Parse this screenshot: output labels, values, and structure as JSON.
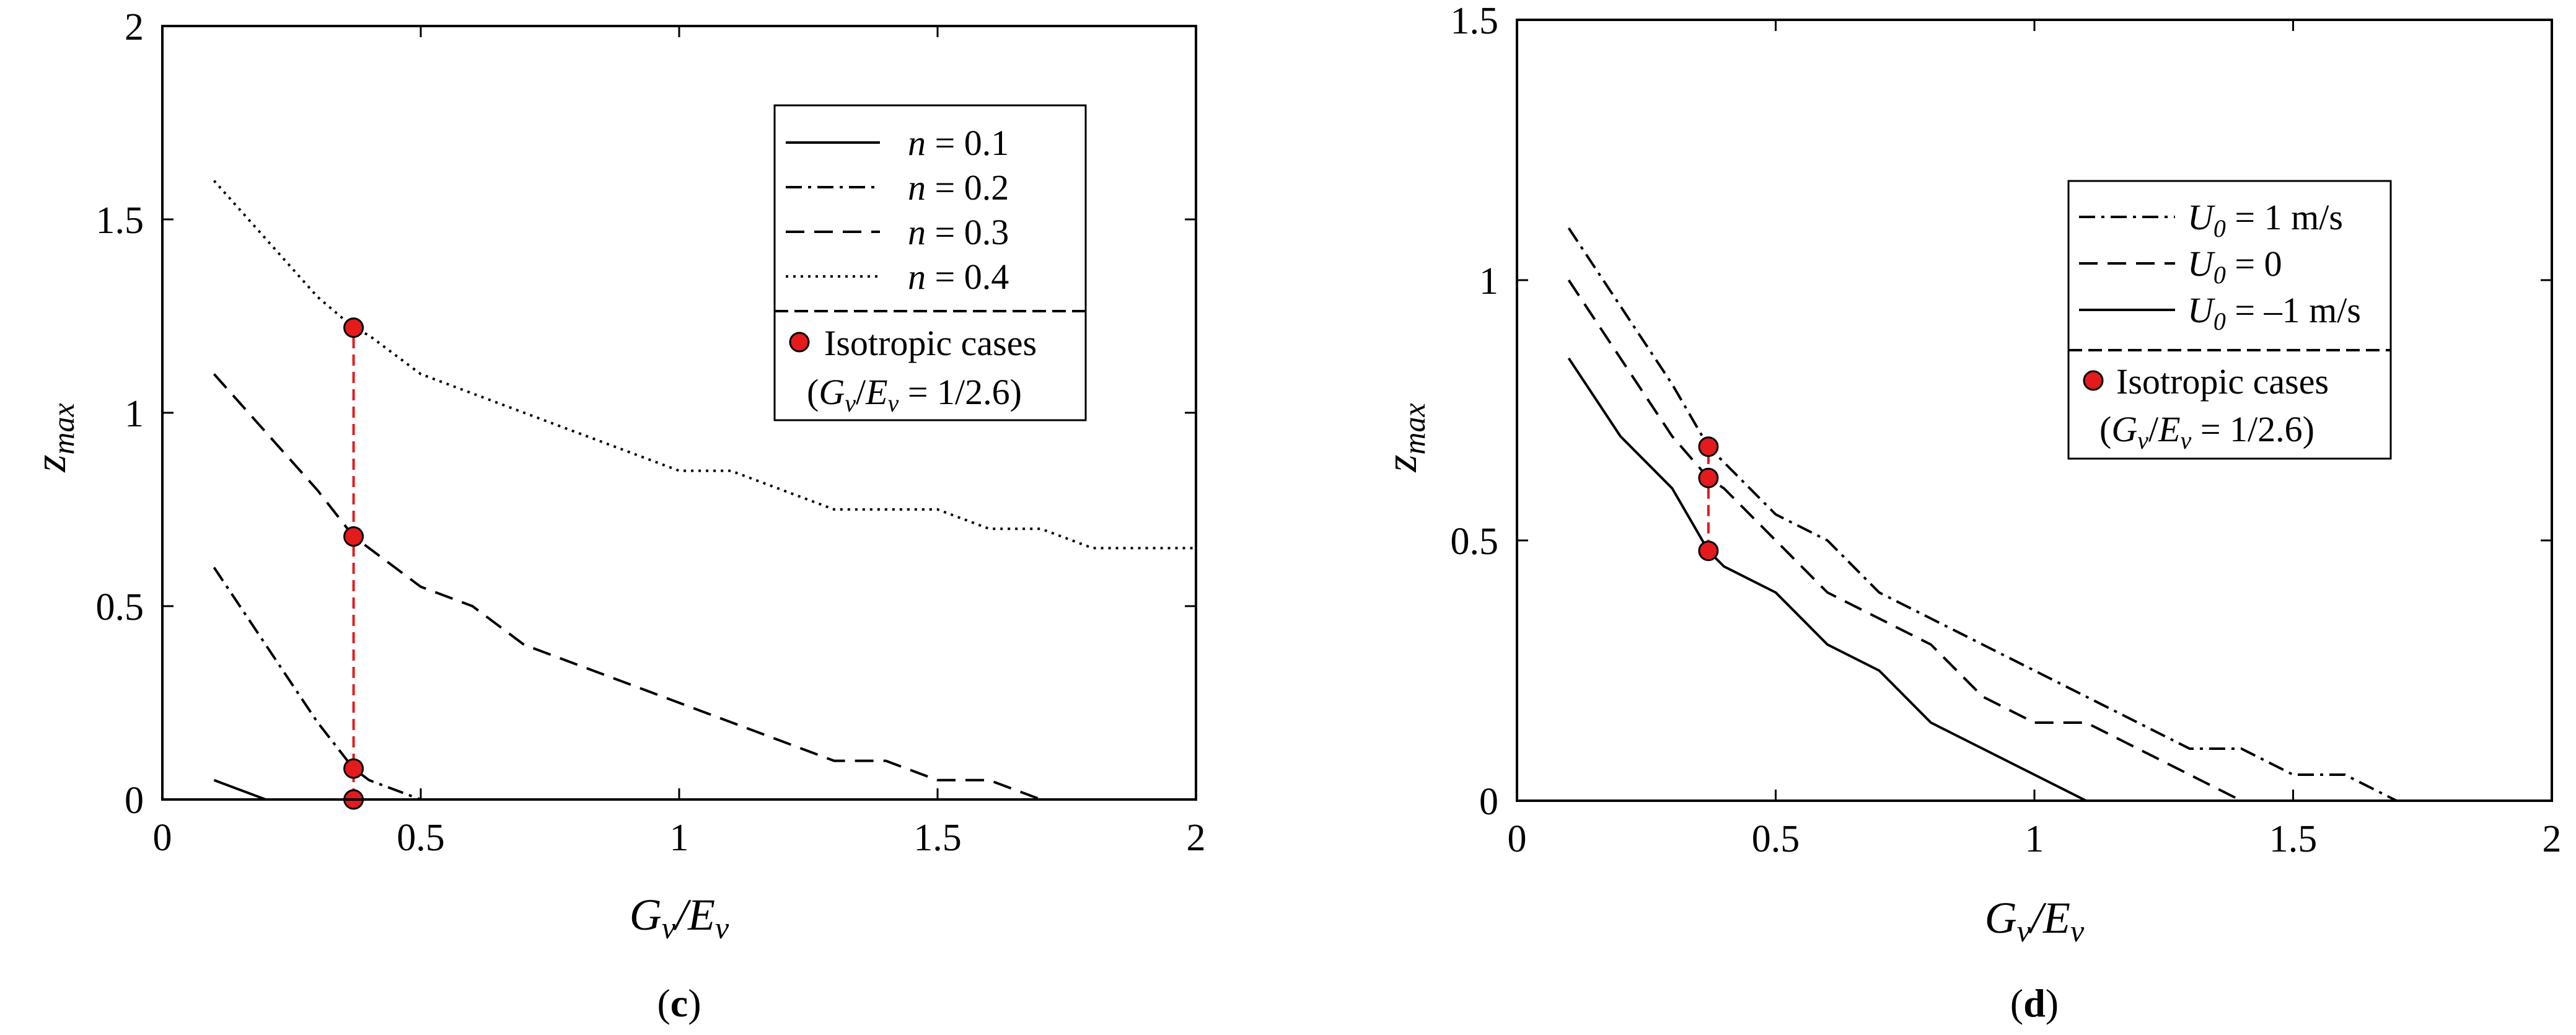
{
  "chart_data": [
    {
      "type": "line",
      "panel": "c",
      "panel_label": {
        "open": "(",
        "letter": "c",
        "close": ")"
      },
      "xlabel": {
        "G": "G",
        "v1": "v",
        "slash": "/",
        "E": "E",
        "v2": "v"
      },
      "ylabel": {
        "z": "z",
        "sub": "max"
      },
      "xlim": [
        0,
        2
      ],
      "ylim": [
        0,
        2
      ],
      "xticks": [
        0,
        0.5,
        1,
        1.5,
        2
      ],
      "xtick_labels": [
        "0",
        "0.5",
        "1",
        "1.5",
        "2"
      ],
      "yticks": [
        0,
        0.5,
        1,
        1.5,
        2
      ],
      "ytick_labels": [
        "0",
        "0.5",
        "1",
        "1.5",
        "2"
      ],
      "legend_position": "top-right",
      "series": [
        {
          "name": "n = 0.1",
          "label_var": "n",
          "label_rest": " = 0.1",
          "style": "solid",
          "x": [
            0.1,
            0.2,
            0.4,
            2.0
          ],
          "y": [
            0.05,
            0.0,
            0.0,
            0.0
          ]
        },
        {
          "name": "n = 0.2",
          "label_var": "n",
          "label_rest": " = 0.2",
          "style": "dashdot",
          "x": [
            0.1,
            0.2,
            0.3,
            0.37,
            0.4,
            0.5,
            2.0
          ],
          "y": [
            0.6,
            0.4,
            0.2,
            0.08,
            0.05,
            0.0,
            0.0
          ]
        },
        {
          "name": "n = 0.3",
          "label_var": "n",
          "label_rest": " = 0.3",
          "style": "dashed",
          "x": [
            0.1,
            0.2,
            0.3,
            0.37,
            0.4,
            0.5,
            0.6,
            0.7,
            0.8,
            0.9,
            1.0,
            1.1,
            1.2,
            1.3,
            1.4,
            1.5,
            1.6,
            1.7,
            2.0
          ],
          "y": [
            1.1,
            0.95,
            0.8,
            0.68,
            0.65,
            0.55,
            0.5,
            0.4,
            0.35,
            0.3,
            0.25,
            0.2,
            0.15,
            0.1,
            0.1,
            0.05,
            0.05,
            0.0,
            0.0
          ]
        },
        {
          "name": "n = 0.4",
          "label_var": "n",
          "label_rest": " = 0.4",
          "style": "dotted",
          "x": [
            0.1,
            0.2,
            0.3,
            0.37,
            0.4,
            0.5,
            0.6,
            0.7,
            0.8,
            0.9,
            1.0,
            1.1,
            1.2,
            1.3,
            1.4,
            1.5,
            1.6,
            1.7,
            1.8,
            1.9,
            2.0
          ],
          "y": [
            1.6,
            1.45,
            1.3,
            1.22,
            1.2,
            1.1,
            1.05,
            1.0,
            0.95,
            0.9,
            0.85,
            0.85,
            0.8,
            0.75,
            0.75,
            0.75,
            0.7,
            0.7,
            0.65,
            0.65,
            0.65
          ]
        }
      ],
      "isotropic": {
        "label": "Isotropic cases",
        "ratio_label": {
          "open": "(",
          "G": "G",
          "v1": "v",
          "slash": "/",
          "E": "E",
          "v2": "v",
          "rest": " = 1/2.6)"
        },
        "x": 0.37,
        "y": [
          0.0,
          0.08,
          0.68,
          1.22
        ],
        "color": "#e41a1c"
      }
    },
    {
      "type": "line",
      "panel": "d",
      "panel_label": {
        "open": "(",
        "letter": "d",
        "close": ")"
      },
      "xlabel": {
        "G": "G",
        "v1": "v",
        "slash": "/",
        "E": "E",
        "v2": "v"
      },
      "ylabel": {
        "z": "z",
        "sub": "max"
      },
      "xlim": [
        0,
        2
      ],
      "ylim": [
        0,
        1.5
      ],
      "xticks": [
        0,
        0.5,
        1,
        1.5,
        2
      ],
      "xtick_labels": [
        "0",
        "0.5",
        "1",
        "1.5",
        "2"
      ],
      "yticks": [
        0,
        0.5,
        1,
        1.5
      ],
      "ytick_labels": [
        "0",
        "0.5",
        "1",
        "1.5"
      ],
      "legend_position": "top-right",
      "series": [
        {
          "name": "U0 = 1 m/s",
          "label_var": "U",
          "label_sub": "0",
          "label_rest": " = 1 m/s",
          "style": "dashdot",
          "x": [
            0.1,
            0.2,
            0.3,
            0.37,
            0.4,
            0.5,
            0.6,
            0.7,
            0.8,
            0.9,
            1.0,
            1.1,
            1.2,
            1.3,
            1.4,
            1.5,
            1.6,
            1.7,
            2.0
          ],
          "y": [
            1.1,
            0.95,
            0.8,
            0.68,
            0.65,
            0.55,
            0.5,
            0.4,
            0.35,
            0.3,
            0.25,
            0.2,
            0.15,
            0.1,
            0.1,
            0.05,
            0.05,
            0.0,
            0.0
          ]
        },
        {
          "name": "U0 = 0",
          "label_var": "U",
          "label_sub": "0",
          "label_rest": " = 0",
          "style": "dashed",
          "x": [
            0.1,
            0.2,
            0.3,
            0.37,
            0.4,
            0.5,
            0.6,
            0.7,
            0.8,
            0.9,
            1.0,
            1.1,
            1.2,
            1.3,
            1.4,
            2.0
          ],
          "y": [
            1.0,
            0.85,
            0.7,
            0.62,
            0.6,
            0.5,
            0.4,
            0.35,
            0.3,
            0.2,
            0.15,
            0.15,
            0.1,
            0.05,
            0.0,
            0.0
          ]
        },
        {
          "name": "U0 = -1 m/s",
          "label_var": "U",
          "label_sub": "0",
          "label_rest": " = –1 m/s",
          "style": "solid",
          "x": [
            0.1,
            0.2,
            0.3,
            0.37,
            0.4,
            0.5,
            0.6,
            0.7,
            0.8,
            0.9,
            1.0,
            1.1,
            2.0
          ],
          "y": [
            0.85,
            0.7,
            0.6,
            0.48,
            0.45,
            0.4,
            0.3,
            0.25,
            0.15,
            0.1,
            0.05,
            0.0,
            0.0
          ]
        }
      ],
      "isotropic": {
        "label": "Isotropic cases",
        "ratio_label": {
          "open": "(",
          "G": "G",
          "v1": "v",
          "slash": "/",
          "E": "E",
          "v2": "v",
          "rest": " = 1/2.6)"
        },
        "x": 0.37,
        "y": [
          0.48,
          0.62,
          0.68
        ],
        "color": "#e41a1c"
      }
    }
  ]
}
